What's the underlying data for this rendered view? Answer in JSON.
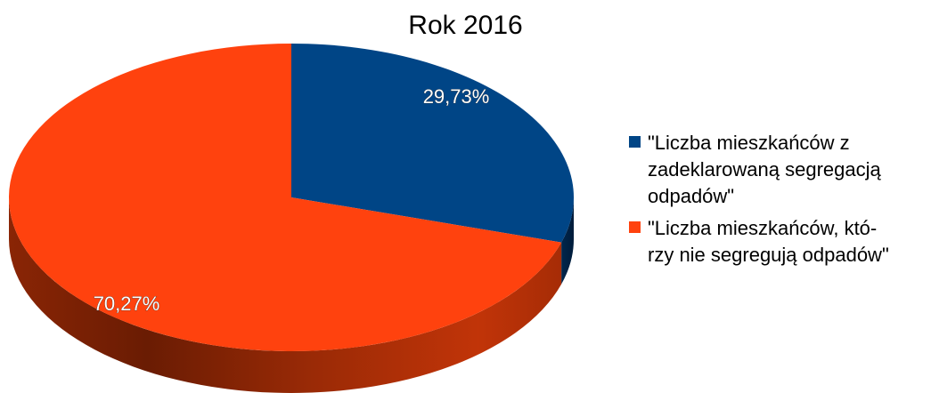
{
  "chart_data": {
    "type": "pie",
    "style": "3d",
    "title": "Rok 2016",
    "legend_position": "right",
    "series": [
      {
        "name": "\"Liczba mieszkańców z zadeklarowaną segregacją odpadów\"",
        "value": 29.73,
        "label": "29,73%",
        "color": "#004586"
      },
      {
        "name": "\"Liczba mieszkańców, któ-rzy nie segregują odpadów\"",
        "value": 70.27,
        "label": "70,27%",
        "color": "#ff420e"
      }
    ]
  },
  "legend_lines": [
    [
      "\"Liczba mieszkańców z",
      "zadeklarowaną segregacją",
      "odpadów\""
    ],
    [
      "\"Liczba mieszkańców, któ-",
      "rzy nie segregują odpadów\""
    ]
  ]
}
